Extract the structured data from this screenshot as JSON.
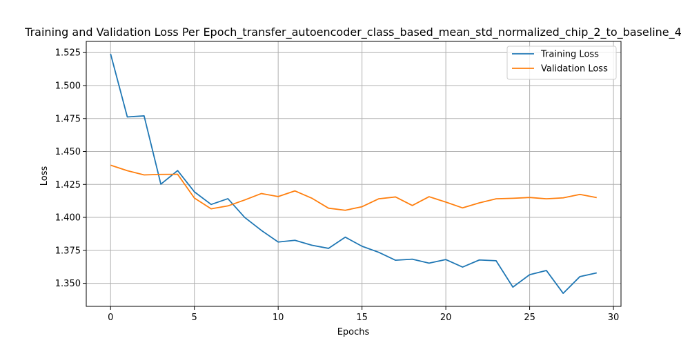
{
  "chart_data": {
    "type": "line",
    "title": "Training and Validation Loss Per Epoch_transfer_autoencoder_class_based_mean_std_normalized_chip_2_to_baseline_4",
    "xlabel": "Epochs",
    "ylabel": "Loss",
    "xlim": [
      -1.45,
      30.45
    ],
    "ylim": [
      1.3325,
      1.5335
    ],
    "xticks": [
      0,
      5,
      10,
      15,
      20,
      25,
      30
    ],
    "yticks": [
      1.35,
      1.375,
      1.4,
      1.425,
      1.45,
      1.475,
      1.5,
      1.525
    ],
    "xtick_labels": [
      "0",
      "5",
      "10",
      "15",
      "20",
      "25",
      "30"
    ],
    "ytick_labels": [
      "1.350",
      "1.375",
      "1.400",
      "1.425",
      "1.450",
      "1.475",
      "1.500",
      "1.525"
    ],
    "grid": true,
    "legend_position": "top-right",
    "x": [
      0,
      1,
      2,
      3,
      4,
      5,
      6,
      7,
      8,
      9,
      10,
      11,
      12,
      13,
      14,
      15,
      16,
      17,
      18,
      19,
      20,
      21,
      22,
      23,
      24,
      25,
      26,
      27,
      28,
      29
    ],
    "series": [
      {
        "name": "Training Loss",
        "color": "#1f77b4",
        "values": [
          1.5241,
          1.4762,
          1.477,
          1.4252,
          1.4355,
          1.4194,
          1.4098,
          1.4142,
          1.4,
          1.3901,
          1.3813,
          1.3826,
          1.3789,
          1.3765,
          1.385,
          1.3781,
          1.3735,
          1.3675,
          1.3683,
          1.3653,
          1.368,
          1.3623,
          1.3677,
          1.3671,
          1.3471,
          1.3565,
          1.3597,
          1.3424,
          1.3551,
          1.3579
        ]
      },
      {
        "name": "Validation Loss",
        "color": "#ff7f0e",
        "values": [
          1.4396,
          1.4354,
          1.4322,
          1.4326,
          1.4327,
          1.4147,
          1.4065,
          1.4087,
          1.4132,
          1.4181,
          1.4158,
          1.4201,
          1.4146,
          1.407,
          1.4054,
          1.4081,
          1.4141,
          1.4155,
          1.409,
          1.4157,
          1.4116,
          1.4072,
          1.411,
          1.4141,
          1.4145,
          1.4151,
          1.4141,
          1.4148,
          1.4174,
          1.415
        ]
      }
    ]
  }
}
